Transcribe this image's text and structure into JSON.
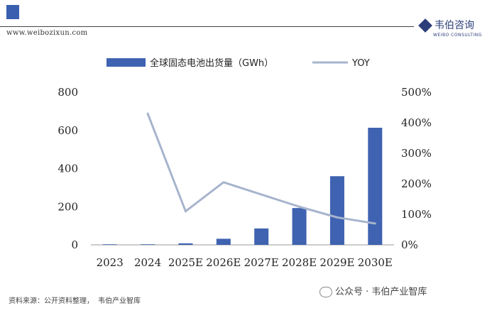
{
  "header": {
    "site_url": "www.weibozixun.com",
    "brand_name": "韦伯咨询",
    "brand_sub": "WEIBO CONSULTING"
  },
  "footer": {
    "source_label": "资料来源：公开资料整理，",
    "source_org": "韦伯产业智库",
    "wechat": "公众号 · 韦伯产业智库"
  },
  "colors": {
    "bar": "#3f62b1",
    "line": "#a7b4cd",
    "axis": "#999999"
  },
  "chart_data": {
    "type": "bar",
    "categories": [
      "2023",
      "2024",
      "2025E",
      "2026E",
      "2027E",
      "2028E",
      "2029E",
      "2030E"
    ],
    "series": [
      {
        "name": "全球固态电池出货量（GWh）",
        "type": "bar",
        "axis": "left",
        "values": [
          1,
          3,
          8,
          32,
          86,
          193,
          360,
          614
        ]
      },
      {
        "name": "YOY",
        "type": "line",
        "axis": "right",
        "values": [
          null,
          430,
          110,
          205,
          165,
          125,
          90,
          70
        ]
      }
    ],
    "y_left": {
      "min": 0,
      "max": 800,
      "ticks": [
        "0",
        "200",
        "400",
        "600",
        "800"
      ]
    },
    "y_right": {
      "min": 0,
      "max": 500,
      "ticks": [
        "0%",
        "100%",
        "200%",
        "300%",
        "400%",
        "500%"
      ]
    },
    "legend_position": "top"
  }
}
